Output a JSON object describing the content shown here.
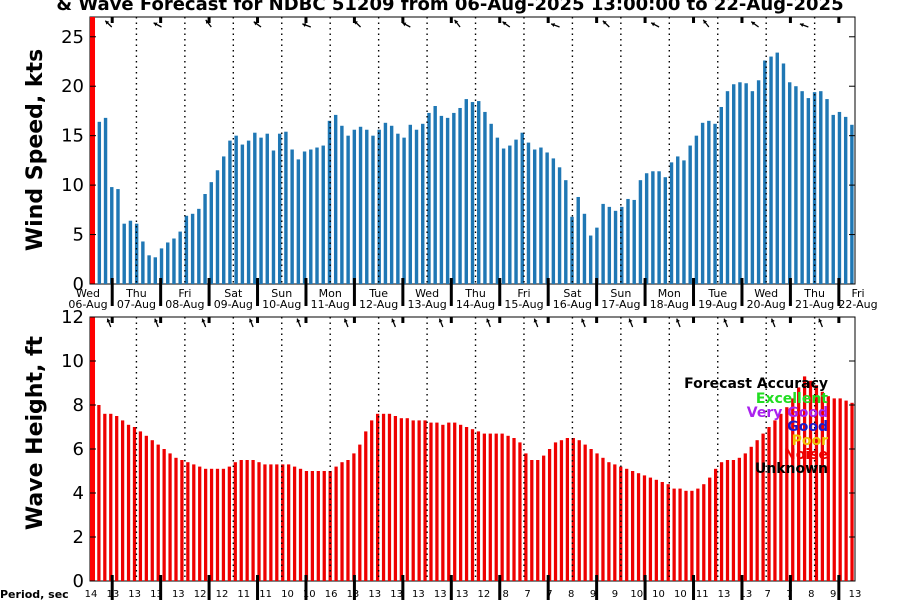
{
  "title": "& Wave Forecast for NDBC 51209 from 06-Aug-2025 13:00:00 to 22-Aug-2025",
  "day_labels": [
    {
      "weekday": "Wed",
      "date": "06-Aug"
    },
    {
      "weekday": "Thu",
      "date": "07-Aug"
    },
    {
      "weekday": "Fri",
      "date": "08-Aug"
    },
    {
      "weekday": "Sat",
      "date": "09-Aug"
    },
    {
      "weekday": "Sun",
      "date": "10-Aug"
    },
    {
      "weekday": "Mon",
      "date": "11-Aug"
    },
    {
      "weekday": "Tue",
      "date": "12-Aug"
    },
    {
      "weekday": "Wed",
      "date": "13-Aug"
    },
    {
      "weekday": "Thu",
      "date": "14-Aug"
    },
    {
      "weekday": "Fri",
      "date": "15-Aug"
    },
    {
      "weekday": "Sat",
      "date": "16-Aug"
    },
    {
      "weekday": "Sun",
      "date": "17-Aug"
    },
    {
      "weekday": "Mon",
      "date": "18-Aug"
    },
    {
      "weekday": "Tue",
      "date": "19-Aug"
    },
    {
      "weekday": "Wed",
      "date": "20-Aug"
    },
    {
      "weekday": "Thu",
      "date": "21-Aug"
    },
    {
      "weekday": "Fri",
      "date": "22-Aug"
    }
  ],
  "period": {
    "label": "Period, sec",
    "values": [
      "14",
      "13",
      "13",
      "13",
      "13",
      "12",
      "12",
      "11",
      "11",
      "10",
      "10",
      "16",
      "13",
      "13",
      "13",
      "13",
      "13",
      "13",
      "12",
      "8",
      "7",
      "7",
      "8",
      "9",
      "9",
      "10",
      "10",
      "10",
      "11",
      "13",
      "13",
      "7",
      "7",
      "8",
      "9",
      "13"
    ]
  },
  "accuracy_legend": {
    "title": "Forecast Accuracy",
    "items": [
      {
        "label": "Excellent",
        "color": "#22dd22"
      },
      {
        "label": "Very Good",
        "color": "#aa22ee"
      },
      {
        "label": "Good",
        "color": "#1a1acc"
      },
      {
        "label": "Poor",
        "color": "#f0c000"
      },
      {
        "label": "Noise",
        "color": "#ee0000"
      },
      {
        "label": "Unknown",
        "color": "#000000"
      }
    ]
  },
  "colors": {
    "wind_bar": "#1f77b4",
    "wave_bar": "#ee0000",
    "now_marker": "#ff0000"
  },
  "chart_data": [
    {
      "type": "bar",
      "ylabel": "Wind Speed, kts",
      "ylim": [
        0,
        27
      ],
      "yticks": [
        0,
        5,
        10,
        15,
        20,
        25
      ],
      "grid": "dotted vertical lines at noon",
      "values": [
        13.8,
        16.4,
        16.8,
        9.8,
        9.6,
        6.1,
        6.4,
        6.1,
        4.3,
        2.9,
        2.7,
        3.6,
        4.2,
        4.6,
        5.3,
        6.9,
        7.1,
        7.6,
        9.1,
        10.3,
        11.5,
        12.9,
        14.5,
        15.0,
        14.1,
        14.5,
        15.3,
        14.8,
        15.2,
        13.5,
        15.2,
        15.4,
        13.6,
        12.6,
        13.4,
        13.6,
        13.8,
        14.0,
        16.5,
        17.1,
        16.0,
        15.0,
        15.6,
        15.9,
        15.6,
        15.0,
        15.6,
        16.3,
        16.0,
        15.2,
        14.8,
        16.1,
        15.6,
        16.2,
        17.3,
        18.0,
        17.0,
        16.8,
        17.3,
        17.8,
        18.7,
        18.4,
        18.5,
        17.4,
        16.2,
        14.8,
        13.7,
        14.0,
        14.6,
        15.3,
        14.3,
        13.6,
        13.8,
        13.3,
        12.7,
        11.8,
        10.5,
        6.8,
        8.8,
        7.1,
        4.9,
        5.7,
        8.1,
        7.8,
        7.4,
        7.8,
        8.6,
        8.5,
        10.5,
        11.2,
        11.4,
        11.4,
        10.8,
        12.3,
        12.9,
        12.5,
        14.0,
        15.0,
        16.3,
        16.5,
        16.2,
        17.9,
        19.5,
        20.2,
        20.4,
        20.3,
        19.5,
        20.6,
        22.6,
        23.0,
        23.4,
        22.3,
        20.4,
        20.0,
        19.5,
        18.8,
        19.4,
        19.5,
        18.7,
        17.1,
        17.4,
        16.9,
        16.1
      ],
      "direction": "arrows along top edge"
    },
    {
      "type": "bar",
      "ylabel": "Wave Height, ft",
      "ylim": [
        0,
        12
      ],
      "yticks": [
        0,
        2,
        4,
        6,
        8,
        10,
        12
      ],
      "grid": "dotted vertical lines at noon",
      "values": [
        8.0,
        8.0,
        7.6,
        7.6,
        7.5,
        7.3,
        7.1,
        7.0,
        6.8,
        6.6,
        6.4,
        6.2,
        6.0,
        5.8,
        5.6,
        5.5,
        5.4,
        5.3,
        5.2,
        5.1,
        5.1,
        5.1,
        5.1,
        5.2,
        5.4,
        5.5,
        5.5,
        5.5,
        5.4,
        5.3,
        5.3,
        5.3,
        5.3,
        5.3,
        5.2,
        5.1,
        5.0,
        5.0,
        5.0,
        5.0,
        5.0,
        5.2,
        5.4,
        5.5,
        5.8,
        6.2,
        6.8,
        7.3,
        7.6,
        7.6,
        7.6,
        7.5,
        7.4,
        7.4,
        7.3,
        7.3,
        7.3,
        7.2,
        7.2,
        7.1,
        7.2,
        7.2,
        7.1,
        7.0,
        6.9,
        6.8,
        6.7,
        6.7,
        6.7,
        6.7,
        6.6,
        6.5,
        6.3,
        5.8,
        5.5,
        5.5,
        5.7,
        6.0,
        6.3,
        6.4,
        6.5,
        6.5,
        6.4,
        6.2,
        6.0,
        5.8,
        5.6,
        5.4,
        5.3,
        5.2,
        5.1,
        5.0,
        4.9,
        4.8,
        4.7,
        4.6,
        4.5,
        4.4,
        4.2,
        4.2,
        4.1,
        4.1,
        4.2,
        4.4,
        4.7,
        5.1,
        5.4,
        5.5,
        5.5,
        5.6,
        5.8,
        6.1,
        6.4,
        6.7,
        7.0,
        7.3,
        7.6,
        7.9,
        8.3,
        8.8,
        9.3,
        9.1,
        8.9,
        8.6,
        8.4,
        8.3,
        8.3,
        8.2,
        8.1
      ],
      "direction": "arrows along top edge"
    }
  ]
}
